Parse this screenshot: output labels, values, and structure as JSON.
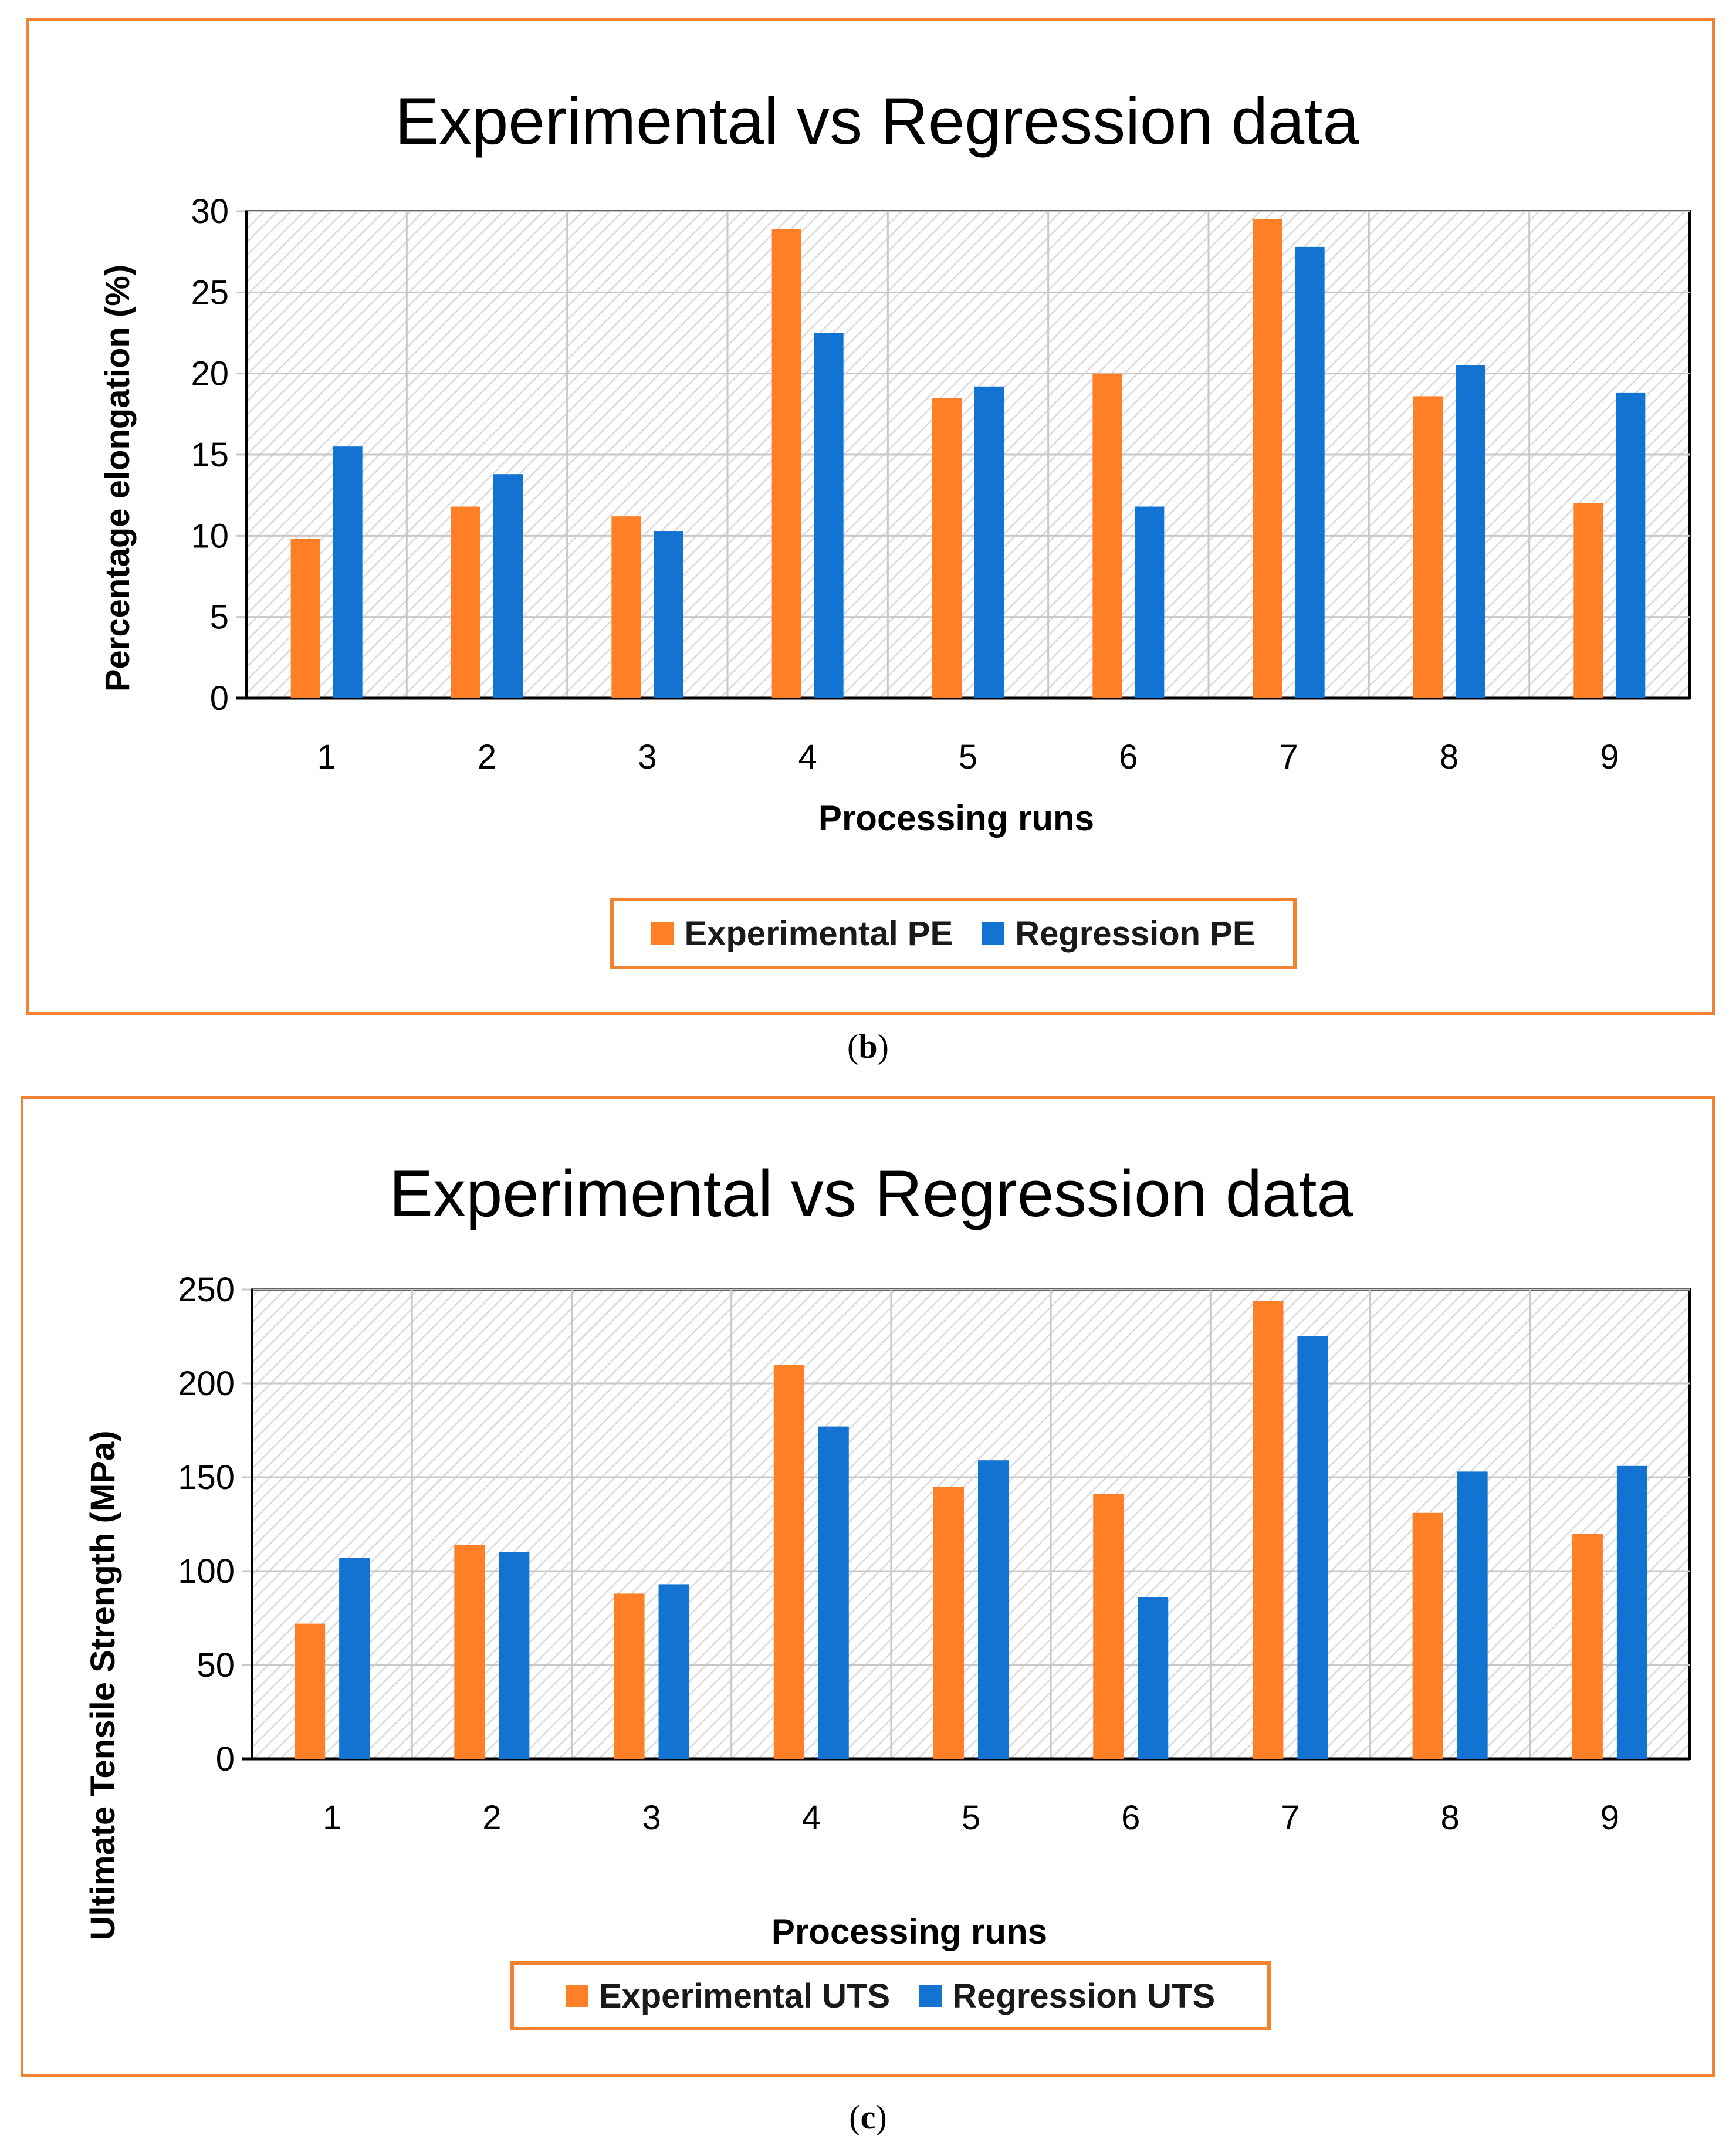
{
  "colors": {
    "experimental": "#ff7f27",
    "regression": "#1273d2",
    "frame": "#f08232"
  },
  "captions": {
    "b": "b",
    "c": "c"
  },
  "chart_data": [
    {
      "type": "bar",
      "title": "Experimental vs Regression data",
      "xlabel": "Processing runs",
      "ylabel": "Percentage elongation (%)",
      "ylim": [
        0,
        30
      ],
      "yticks": [
        0,
        5,
        10,
        15,
        20,
        25,
        30
      ],
      "grid": true,
      "legend_position": "bottom-center",
      "categories": [
        "1",
        "2",
        "3",
        "4",
        "5",
        "6",
        "7",
        "8",
        "9"
      ],
      "series": [
        {
          "name": "Experimental PE",
          "color_key": "experimental",
          "values": [
            9.8,
            11.8,
            11.2,
            28.9,
            18.5,
            20,
            29.5,
            18.6,
            12
          ]
        },
        {
          "name": "Regression PE",
          "color_key": "regression",
          "values": [
            15.5,
            13.8,
            10.3,
            22.5,
            19.2,
            11.8,
            27.8,
            20.5,
            18.8
          ]
        }
      ]
    },
    {
      "type": "bar",
      "title": "Experimental vs Regression data",
      "xlabel": "Processing runs",
      "ylabel": "Ultimate Tensile  Strength (MPa)",
      "ylim": [
        0,
        250
      ],
      "yticks": [
        0,
        50,
        100,
        150,
        200,
        250
      ],
      "grid": true,
      "legend_position": "bottom-center",
      "categories": [
        "1",
        "2",
        "3",
        "4",
        "5",
        "6",
        "7",
        "8",
        "9"
      ],
      "series": [
        {
          "name": "Experimental UTS",
          "color_key": "experimental",
          "values": [
            72,
            114,
            88,
            210,
            145,
            141,
            244,
            131,
            120
          ]
        },
        {
          "name": "Regression UTS",
          "color_key": "regression",
          "values": [
            107,
            110,
            93,
            177,
            159,
            86,
            225,
            153,
            156
          ]
        }
      ]
    }
  ]
}
